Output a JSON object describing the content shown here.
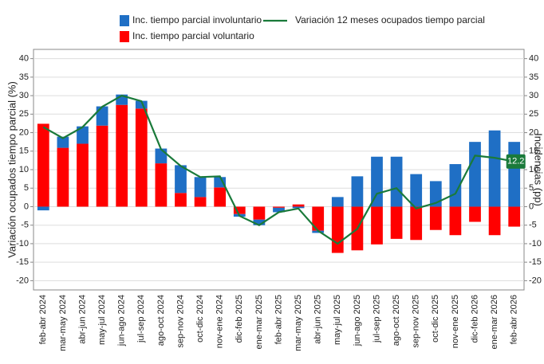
{
  "chart_data": {
    "type": "bar",
    "y_label": "Variación ocupados tiempo parcial (%)",
    "y2_label": "Incidencias (pp)",
    "categories": [
      "feb-abr 2024",
      "mar-may 2024",
      "abr-jun 2024",
      "may-jul 2024",
      "jun-ago 2024",
      "jul-sep 2024",
      "ago-oct 2024",
      "sep-nov 2024",
      "oct-dic 2024",
      "nov-ene 2024",
      "dic-feb 2025",
      "ene-mar 2025",
      "feb-abr 2025",
      "mar-may 2025",
      "abr-jun 2025",
      "may-jul 2025",
      "jun-ago 2025",
      "jul-sep 2025",
      "ago-oct 2025",
      "sep-nov 2025",
      "oct-dic 2025",
      "nov-ene 2025",
      "dic-feb 2026",
      "ene-mar 2026",
      "feb-abr 2026"
    ],
    "series": [
      {
        "name": "Inc. tiempo parcial involuntario",
        "type": "bar",
        "axis": "y2",
        "color": "#1f6fc5",
        "values": [
          -1,
          3,
          4.7,
          5.2,
          2.8,
          2.1,
          4,
          7.5,
          5.4,
          2.8,
          -0.7,
          -1.5,
          -1.2,
          -0.4,
          -0.6,
          2.6,
          8.2,
          13.5,
          13.5,
          8.8,
          6.9,
          11.5,
          17.5,
          20.6,
          17.5
        ]
      },
      {
        "name": "Inc. tiempo parcial voluntario",
        "type": "bar",
        "axis": "y2",
        "color": "#ff0000",
        "values": [
          22.4,
          15.9,
          17,
          21.9,
          27.5,
          26.5,
          11.7,
          3.7,
          2.6,
          5.2,
          -2,
          -3.5,
          -0.3,
          0.6,
          -6.5,
          -12.5,
          -11.8,
          -10.2,
          -8.7,
          -9,
          -6.3,
          -7.7,
          -4.1,
          -7.7,
          -5.4
        ]
      },
      {
        "name": "Variación 12 meses ocupados tiempo parcial",
        "type": "line",
        "color": "#1a7a3a",
        "values": [
          21.5,
          18.5,
          21.5,
          27,
          30,
          28.5,
          15.5,
          11,
          8,
          8.2,
          -2.5,
          -5,
          -1.5,
          -0.5,
          -6.5,
          -10,
          -6,
          3.5,
          5,
          -0.5,
          1,
          3.5,
          13.8,
          13.2,
          12.2
        ]
      }
    ],
    "ylim": [
      -22.5,
      42.5
    ],
    "yticks": [
      -20,
      -15,
      -10,
      -5,
      0,
      5,
      10,
      15,
      20,
      25,
      30,
      35,
      40
    ],
    "y2lim": [
      -22.5,
      42.5
    ],
    "y2ticks": [
      -20,
      -15,
      -10,
      -5,
      0,
      5,
      10,
      15,
      20,
      25,
      30,
      35,
      40
    ],
    "grid": true
  }
}
